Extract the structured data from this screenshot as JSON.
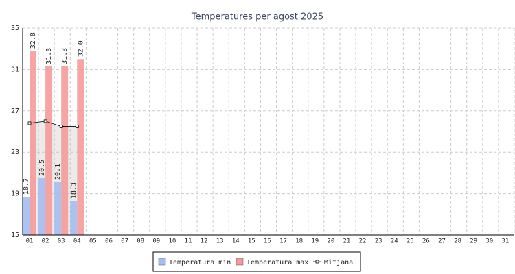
{
  "chart_data": {
    "type": "bar",
    "title": "Temperatures per agost 2025",
    "categories": [
      "01",
      "02",
      "03",
      "04",
      "05",
      "06",
      "07",
      "08",
      "09",
      "10",
      "11",
      "12",
      "13",
      "14",
      "15",
      "16",
      "17",
      "18",
      "19",
      "20",
      "21",
      "22",
      "23",
      "24",
      "25",
      "26",
      "27",
      "28",
      "29",
      "30",
      "31"
    ],
    "series": [
      {
        "name": "Temperatura min",
        "type": "bar",
        "color": "#a4bdf0",
        "values": [
          18.7,
          20.5,
          20.1,
          18.3,
          null,
          null,
          null,
          null,
          null,
          null,
          null,
          null,
          null,
          null,
          null,
          null,
          null,
          null,
          null,
          null,
          null,
          null,
          null,
          null,
          null,
          null,
          null,
          null,
          null,
          null,
          null
        ],
        "value_labels": [
          "18.7",
          "20.5",
          "20.1",
          "18.3",
          null,
          null,
          null,
          null,
          null,
          null,
          null,
          null,
          null,
          null,
          null,
          null,
          null,
          null,
          null,
          null,
          null,
          null,
          null,
          null,
          null,
          null,
          null,
          null,
          null,
          null,
          null
        ]
      },
      {
        "name": "Temperatura max",
        "type": "bar",
        "color": "#f59a9a",
        "values": [
          32.8,
          31.3,
          31.3,
          32.0,
          null,
          null,
          null,
          null,
          null,
          null,
          null,
          null,
          null,
          null,
          null,
          null,
          null,
          null,
          null,
          null,
          null,
          null,
          null,
          null,
          null,
          null,
          null,
          null,
          null,
          null,
          null
        ],
        "value_labels": [
          "32.8",
          "31.3",
          "31.3",
          "32.0",
          null,
          null,
          null,
          null,
          null,
          null,
          null,
          null,
          null,
          null,
          null,
          null,
          null,
          null,
          null,
          null,
          null,
          null,
          null,
          null,
          null,
          null,
          null,
          null,
          null,
          null,
          null
        ]
      },
      {
        "name": "Mitjana",
        "type": "line",
        "color": "#000000",
        "values": [
          25.8,
          26.0,
          25.5,
          25.5,
          null,
          null,
          null,
          null,
          null,
          null,
          null,
          null,
          null,
          null,
          null,
          null,
          null,
          null,
          null,
          null,
          null,
          null,
          null,
          null,
          null,
          null,
          null,
          null,
          null,
          null,
          null
        ]
      }
    ],
    "ylim": [
      15,
      35
    ],
    "yticks": [
      15,
      19,
      23,
      27,
      31,
      35
    ],
    "grid": true,
    "legend": "bottom"
  }
}
